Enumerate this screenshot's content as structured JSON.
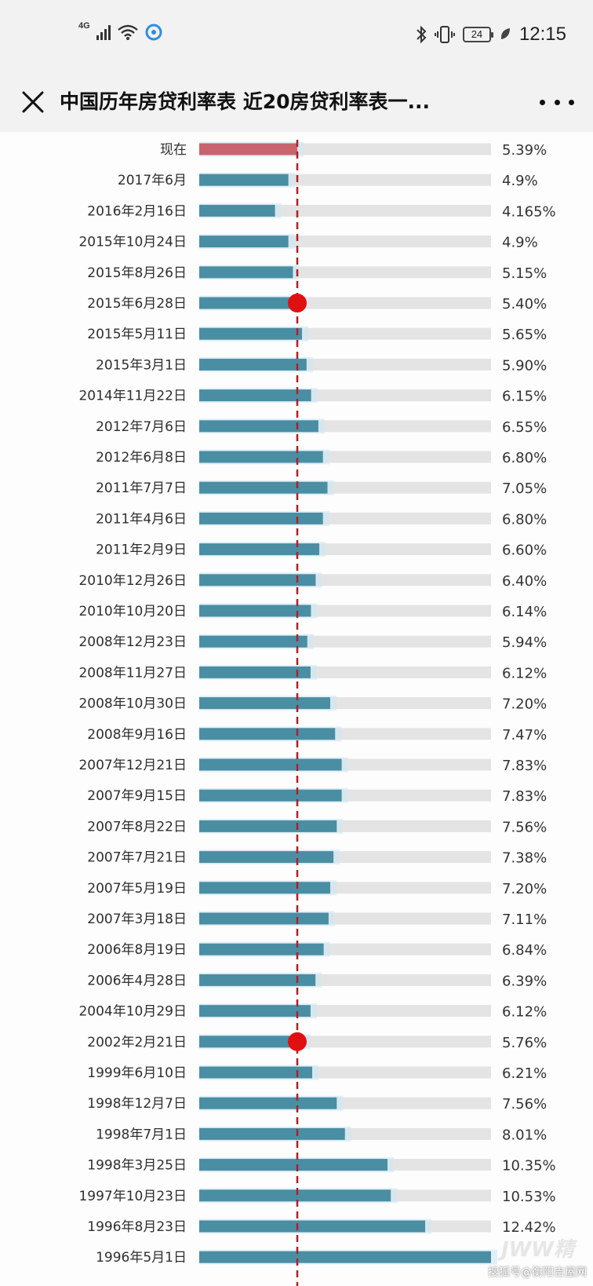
{
  "status_bar": {
    "network": "4G",
    "battery": "24",
    "time": "12:15"
  },
  "header": {
    "title": "中国历年房贷利率表 近20房贷利率表一..."
  },
  "chart_data": {
    "type": "bar",
    "orientation": "horizontal",
    "reference_value": 5.39,
    "categories": [
      "现在",
      "2017年6月",
      "2016年2月16日",
      "2015年10月24日",
      "2015年8月26日",
      "2015年6月28日",
      "2015年5月11日",
      "2015年3月1日",
      "2014年11月22日",
      "2012年7月6日",
      "2012年6月8日",
      "2011年7月7日",
      "2011年4月6日",
      "2011年2月9日",
      "2010年12月26日",
      "2010年10月20日",
      "2008年12月23日",
      "2008年11月27日",
      "2008年10月30日",
      "2008年9月16日",
      "2007年12月21日",
      "2007年9月15日",
      "2007年8月22日",
      "2007年7月21日",
      "2007年5月19日",
      "2007年3月18日",
      "2006年8月19日",
      "2006年4月28日",
      "2004年10月29日",
      "2002年2月21日",
      "1999年6月10日",
      "1998年12月7日",
      "1998年7月1日",
      "1998年3月25日",
      "1997年10月23日",
      "1996年8月23日",
      "1996年5月1日"
    ],
    "values": [
      5.39,
      4.9,
      4.165,
      4.9,
      5.15,
      5.4,
      5.65,
      5.9,
      6.15,
      6.55,
      6.8,
      7.05,
      6.8,
      6.6,
      6.4,
      6.14,
      5.94,
      6.12,
      7.2,
      7.47,
      7.83,
      7.83,
      7.56,
      7.38,
      7.2,
      7.11,
      6.84,
      6.39,
      6.12,
      5.76,
      6.21,
      7.56,
      8.01,
      10.35,
      10.53,
      12.42,
      null
    ],
    "value_labels": [
      "5.39%",
      "4.9%",
      "4.165%",
      "4.9%",
      "5.15%",
      "5.40%",
      "5.65%",
      "5.90%",
      "6.15%",
      "6.55%",
      "6.80%",
      "7.05%",
      "6.80%",
      "6.60%",
      "6.40%",
      "6.14%",
      "5.94%",
      "6.12%",
      "7.20%",
      "7.47%",
      "7.83%",
      "7.83%",
      "7.56%",
      "7.38%",
      "7.20%",
      "7.11%",
      "6.84%",
      "6.39%",
      "6.12%",
      "5.76%",
      "6.21%",
      "7.56%",
      "8.01%",
      "10.35%",
      "10.53%",
      "12.42%",
      ""
    ],
    "highlight_points": [
      5,
      29
    ],
    "colors": {
      "bar": "#4a8ea4",
      "bar_current": "#c9646e",
      "track": "#e4e4e4",
      "reference_line": "#b01f24",
      "marker": "#e01010",
      "glow": "#cfe8f4"
    }
  },
  "watermark": {
    "brand": "JWW精",
    "source": "搜狐号@衡阳吉屋网"
  }
}
